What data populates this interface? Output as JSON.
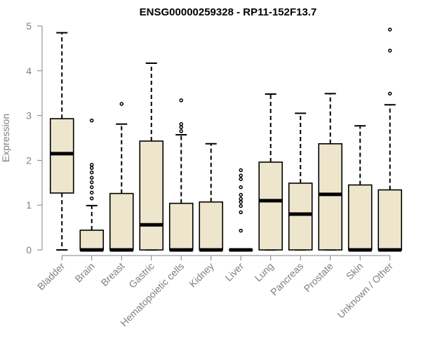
{
  "chart_data": {
    "type": "boxplot",
    "title": "ENSG00000259328 - RP11-152F13.7",
    "xlabel": "",
    "ylabel": "Expression",
    "ylim": [
      0,
      5
    ],
    "yticks": [
      0,
      1,
      2,
      3,
      4,
      5
    ],
    "grid": false,
    "legend": "none",
    "colors": {
      "box_fill": "#ede6cd",
      "stroke": "#000000",
      "axis": "#808080"
    },
    "categories": [
      "Bladder",
      "Brain",
      "Breast",
      "Gastric",
      "Hematopoietic cells",
      "Kidney",
      "Liver",
      "Lung",
      "Pancreas",
      "Prostate",
      "Skin",
      "Unknown / Other"
    ],
    "boxes": [
      {
        "label": "Bladder",
        "min": 0,
        "q1": 1.27,
        "median": 2.15,
        "q3": 2.93,
        "max": 4.85,
        "outliers": []
      },
      {
        "label": "Brain",
        "min": 0,
        "q1": 0,
        "median": 0,
        "q3": 0.44,
        "max": 0.99,
        "outliers": [
          1.15,
          1.28,
          1.4,
          1.51,
          1.61,
          1.73,
          1.83,
          1.9,
          2.89
        ]
      },
      {
        "label": "Breast",
        "min": 0,
        "q1": 0,
        "median": 0,
        "q3": 1.26,
        "max": 2.81,
        "outliers": [
          3.26
        ]
      },
      {
        "label": "Gastric",
        "min": 0,
        "q1": 0,
        "median": 0.56,
        "q3": 2.43,
        "max": 4.17,
        "outliers": []
      },
      {
        "label": "Hematopoietic cells",
        "min": 0,
        "q1": 0,
        "median": 0,
        "q3": 1.04,
        "max": 2.57,
        "outliers": [
          2.65,
          2.74,
          2.81,
          3.34
        ]
      },
      {
        "label": "Kidney",
        "min": 0,
        "q1": 0,
        "median": 0,
        "q3": 1.07,
        "max": 2.37,
        "outliers": []
      },
      {
        "label": "Liver",
        "min": 0,
        "q1": 0,
        "median": 0,
        "q3": 0,
        "max": 0,
        "outliers": [
          0.43,
          0.84,
          0.98,
          1.07,
          1.14,
          1.23,
          1.4,
          1.58,
          1.66,
          1.78
        ]
      },
      {
        "label": "Lung",
        "min": 0,
        "q1": 0,
        "median": 1.1,
        "q3": 1.96,
        "max": 3.48,
        "outliers": []
      },
      {
        "label": "Pancreas",
        "min": 0,
        "q1": 0,
        "median": 0.8,
        "q3": 1.49,
        "max": 3.05,
        "outliers": []
      },
      {
        "label": "Prostate",
        "min": 0,
        "q1": 0,
        "median": 1.24,
        "q3": 2.37,
        "max": 3.49,
        "outliers": []
      },
      {
        "label": "Skin",
        "min": 0,
        "q1": 0,
        "median": 0,
        "q3": 1.45,
        "max": 2.77,
        "outliers": []
      },
      {
        "label": "Unknown / Other",
        "min": 0,
        "q1": 0,
        "median": 0,
        "q3": 1.34,
        "max": 3.24,
        "outliers": [
          3.49,
          4.45,
          4.92
        ]
      }
    ]
  }
}
